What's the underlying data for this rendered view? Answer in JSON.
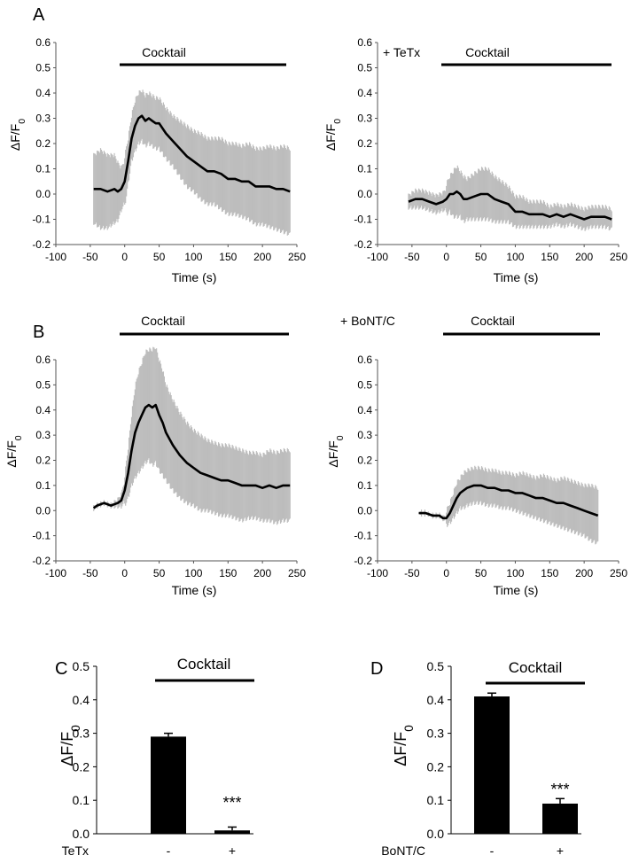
{
  "chart_data": [
    {
      "panel": "A",
      "position": "left",
      "type": "line",
      "title": "Cocktail",
      "condition_label": "",
      "xlabel": "Time (s)",
      "ylabel": "ΔF/F0",
      "xlim": [
        -100,
        250
      ],
      "ylim": [
        -0.2,
        0.6
      ],
      "xticks": [
        "-100",
        "-50",
        "0",
        "50",
        "100",
        "150",
        "200",
        "250"
      ],
      "yticks": [
        "-0.2",
        "-0.1",
        "0.0",
        "0.1",
        "0.2",
        "0.3",
        "0.4",
        "0.5",
        "0.6"
      ],
      "series": [
        {
          "name": "mean ± SEM",
          "x": [
            -45,
            -35,
            -25,
            -15,
            -10,
            -5,
            0,
            5,
            10,
            15,
            20,
            25,
            30,
            35,
            40,
            45,
            50,
            60,
            70,
            80,
            90,
            100,
            110,
            120,
            130,
            140,
            150,
            160,
            170,
            180,
            190,
            200,
            210,
            220,
            230,
            240
          ],
          "mean": [
            0.02,
            0.02,
            0.01,
            0.02,
            0.01,
            0.02,
            0.05,
            0.13,
            0.22,
            0.27,
            0.3,
            0.31,
            0.29,
            0.3,
            0.29,
            0.28,
            0.28,
            0.24,
            0.21,
            0.18,
            0.15,
            0.13,
            0.11,
            0.09,
            0.09,
            0.08,
            0.06,
            0.06,
            0.05,
            0.05,
            0.03,
            0.03,
            0.03,
            0.02,
            0.02,
            0.01
          ],
          "err": [
            0.15,
            0.17,
            0.16,
            0.15,
            0.13,
            0.1,
            0.1,
            0.09,
            0.09,
            0.1,
            0.1,
            0.1,
            0.1,
            0.1,
            0.1,
            0.1,
            0.1,
            0.1,
            0.1,
            0.11,
            0.12,
            0.12,
            0.13,
            0.13,
            0.13,
            0.14,
            0.14,
            0.14,
            0.14,
            0.15,
            0.15,
            0.15,
            0.16,
            0.16,
            0.17,
            0.17
          ]
        }
      ]
    },
    {
      "panel": "",
      "position": "right",
      "type": "line",
      "title": "Cocktail",
      "condition_label": "+ TeTx",
      "xlabel": "Time (s)",
      "ylabel": "ΔF/F0",
      "xlim": [
        -100,
        250
      ],
      "ylim": [
        -0.2,
        0.6
      ],
      "xticks": [
        "-100",
        "-50",
        "0",
        "50",
        "100",
        "150",
        "200",
        "250"
      ],
      "yticks": [
        "-0.2",
        "-0.1",
        "0.0",
        "0.1",
        "0.2",
        "0.3",
        "0.4",
        "0.5",
        "0.6"
      ],
      "series": [
        {
          "name": "mean ± SEM",
          "x": [
            -55,
            -45,
            -35,
            -25,
            -15,
            -5,
            0,
            5,
            10,
            15,
            20,
            25,
            30,
            40,
            50,
            60,
            70,
            80,
            90,
            100,
            110,
            120,
            130,
            140,
            150,
            160,
            170,
            180,
            190,
            200,
            210,
            220,
            230,
            240
          ],
          "mean": [
            -0.03,
            -0.02,
            -0.02,
            -0.03,
            -0.04,
            -0.03,
            -0.02,
            0.0,
            0.0,
            0.01,
            0.0,
            -0.02,
            -0.02,
            -0.01,
            0.0,
            0.0,
            -0.02,
            -0.03,
            -0.04,
            -0.07,
            -0.07,
            -0.08,
            -0.08,
            -0.08,
            -0.09,
            -0.08,
            -0.09,
            -0.08,
            -0.09,
            -0.1,
            -0.09,
            -0.09,
            -0.09,
            -0.1
          ],
          "err": [
            0.04,
            0.05,
            0.05,
            0.05,
            0.05,
            0.05,
            0.06,
            0.07,
            0.09,
            0.1,
            0.09,
            0.09,
            0.08,
            0.09,
            0.1,
            0.1,
            0.09,
            0.08,
            0.07,
            0.06,
            0.06,
            0.05,
            0.05,
            0.05,
            0.04,
            0.04,
            0.04,
            0.04,
            0.04,
            0.04,
            0.04,
            0.04,
            0.04,
            0.04
          ]
        }
      ]
    },
    {
      "panel": "B",
      "position": "left",
      "type": "line",
      "title": "Cocktail",
      "condition_label": "",
      "xlabel": "Time (s)",
      "ylabel": "ΔF/F0",
      "xlim": [
        -100,
        250
      ],
      "ylim": [
        -0.2,
        0.6
      ],
      "xticks": [
        "-100",
        "-50",
        "0",
        "50",
        "100",
        "150",
        "200",
        "250"
      ],
      "yticks": [
        "-0.2",
        "-0.1",
        "0.0",
        "0.1",
        "0.2",
        "0.3",
        "0.4",
        "0.5",
        "0.6"
      ],
      "series": [
        {
          "name": "mean ± SEM",
          "x": [
            -45,
            -40,
            -30,
            -20,
            -10,
            -5,
            0,
            5,
            10,
            15,
            20,
            25,
            30,
            35,
            40,
            45,
            50,
            55,
            60,
            70,
            80,
            90,
            100,
            110,
            120,
            130,
            140,
            150,
            160,
            170,
            180,
            190,
            200,
            210,
            220,
            230,
            240
          ],
          "mean": [
            0.01,
            0.02,
            0.03,
            0.02,
            0.03,
            0.04,
            0.08,
            0.15,
            0.24,
            0.31,
            0.35,
            0.38,
            0.41,
            0.42,
            0.41,
            0.42,
            0.38,
            0.35,
            0.31,
            0.26,
            0.22,
            0.19,
            0.17,
            0.15,
            0.14,
            0.13,
            0.12,
            0.12,
            0.11,
            0.1,
            0.1,
            0.1,
            0.09,
            0.1,
            0.09,
            0.1,
            0.1
          ],
          "err": [
            0.02,
            0.02,
            0.02,
            0.02,
            0.03,
            0.04,
            0.06,
            0.1,
            0.14,
            0.18,
            0.2,
            0.21,
            0.22,
            0.22,
            0.23,
            0.23,
            0.22,
            0.21,
            0.19,
            0.18,
            0.17,
            0.16,
            0.15,
            0.15,
            0.14,
            0.14,
            0.14,
            0.14,
            0.14,
            0.14,
            0.13,
            0.13,
            0.13,
            0.14,
            0.14,
            0.14,
            0.14
          ]
        }
      ]
    },
    {
      "panel": "",
      "position": "right",
      "type": "line",
      "title": "Cocktail",
      "condition_label": "+ BoNT/C",
      "xlabel": "Time (s)",
      "ylabel": "ΔF/F0",
      "xlim": [
        -100,
        250
      ],
      "ylim": [
        -0.2,
        0.6
      ],
      "xticks": [
        "-100",
        "-50",
        "0",
        "50",
        "100",
        "150",
        "200",
        "250"
      ],
      "yticks": [
        "-0.2",
        "-0.1",
        "0.0",
        "0.1",
        "0.2",
        "0.3",
        "0.4",
        "0.5",
        "0.6"
      ],
      "series": [
        {
          "name": "mean ± SEM",
          "x": [
            -40,
            -30,
            -20,
            -10,
            -5,
            0,
            5,
            10,
            15,
            20,
            25,
            30,
            40,
            50,
            60,
            70,
            80,
            90,
            100,
            110,
            120,
            130,
            140,
            150,
            160,
            170,
            180,
            190,
            200,
            210,
            220
          ],
          "mean": [
            -0.01,
            -0.01,
            -0.02,
            -0.02,
            -0.03,
            -0.03,
            -0.01,
            0.02,
            0.05,
            0.07,
            0.08,
            0.09,
            0.1,
            0.1,
            0.09,
            0.09,
            0.08,
            0.08,
            0.07,
            0.07,
            0.06,
            0.05,
            0.05,
            0.04,
            0.03,
            0.03,
            0.02,
            0.01,
            0.0,
            -0.01,
            -0.02
          ],
          "err": [
            0.01,
            0.01,
            0.02,
            0.02,
            0.02,
            0.03,
            0.04,
            0.05,
            0.06,
            0.06,
            0.07,
            0.07,
            0.07,
            0.07,
            0.07,
            0.07,
            0.07,
            0.07,
            0.07,
            0.08,
            0.08,
            0.08,
            0.09,
            0.09,
            0.09,
            0.1,
            0.1,
            0.1,
            0.1,
            0.11,
            0.11
          ]
        }
      ]
    },
    {
      "panel": "C",
      "type": "bar",
      "title": "Cocktail",
      "factor_label": "TeTx",
      "categories": [
        "-",
        "+"
      ],
      "values": [
        0.29,
        0.01
      ],
      "errors": [
        0.01,
        0.01
      ],
      "significance": [
        "",
        "***"
      ],
      "ylabel": "ΔF/F0",
      "ylim": [
        0.0,
        0.5
      ],
      "yticks": [
        "0.0",
        "0.1",
        "0.2",
        "0.3",
        "0.4",
        "0.5"
      ]
    },
    {
      "panel": "D",
      "type": "bar",
      "title": "Cocktail",
      "factor_label": "BoNT/C",
      "categories": [
        "-",
        "+"
      ],
      "values": [
        0.41,
        0.09
      ],
      "errors": [
        0.01,
        0.015
      ],
      "significance": [
        "",
        "***"
      ],
      "ylabel": "ΔF/F0",
      "ylim": [
        0.0,
        0.5
      ],
      "yticks": [
        "0.0",
        "0.1",
        "0.2",
        "0.3",
        "0.4",
        "0.5"
      ]
    }
  ]
}
